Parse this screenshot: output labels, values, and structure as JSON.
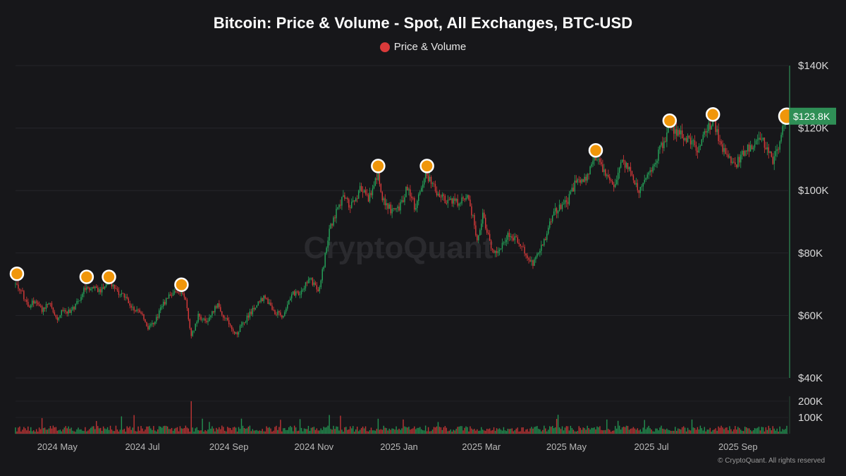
{
  "chart_data": {
    "type": "candlestick",
    "title": "Bitcoin: Price & Volume - Spot, All Exchanges, BTC-USD",
    "legend": [
      {
        "name": "Price & Volume",
        "color": "#d93a3a"
      }
    ],
    "watermark": "CryptoQuant",
    "copyright": "© CryptoQuant. All rights reserved",
    "current_price_label": "$123.8K",
    "current_price": 123800,
    "price_axis": {
      "ylim": [
        40000,
        140000
      ],
      "ticks": [
        {
          "value": 140000,
          "label": "$140K"
        },
        {
          "value": 120000,
          "label": "$120K"
        },
        {
          "value": 100000,
          "label": "$100K"
        },
        {
          "value": 80000,
          "label": "$80K"
        },
        {
          "value": 60000,
          "label": "$60K"
        },
        {
          "value": 40000,
          "label": "$40K"
        }
      ]
    },
    "volume_axis": {
      "ylim": [
        0,
        230000
      ],
      "ticks": [
        {
          "value": 200000,
          "label": "200K"
        },
        {
          "value": 100000,
          "label": "100K"
        }
      ]
    },
    "x_axis": {
      "range": [
        "2024-04-01",
        "2025-10-07"
      ],
      "ticks": [
        {
          "date": "2024-05-01",
          "label": "2024 May"
        },
        {
          "date": "2024-07-01",
          "label": "2024 Jul"
        },
        {
          "date": "2024-09-01",
          "label": "2024 Sep"
        },
        {
          "date": "2024-11-01",
          "label": "2024 Nov"
        },
        {
          "date": "2025-01-01",
          "label": "2025 Jan"
        },
        {
          "date": "2025-03-01",
          "label": "2025 Mar"
        },
        {
          "date": "2025-05-01",
          "label": "2025 May"
        },
        {
          "date": "2025-07-01",
          "label": "2025 Jul"
        },
        {
          "date": "2025-09-01",
          "label": "2025 Sep"
        }
      ]
    },
    "price_path": [
      [
        "2024-04-01",
        70000
      ],
      [
        "2024-04-05",
        68000
      ],
      [
        "2024-04-10",
        63000
      ],
      [
        "2024-04-15",
        65000
      ],
      [
        "2024-04-20",
        62000
      ],
      [
        "2024-04-25",
        64000
      ],
      [
        "2024-05-01",
        59000
      ],
      [
        "2024-05-05",
        62000
      ],
      [
        "2024-05-10",
        61000
      ],
      [
        "2024-05-15",
        64000
      ],
      [
        "2024-05-21",
        69000
      ],
      [
        "2024-05-26",
        68500
      ],
      [
        "2024-06-01",
        68000
      ],
      [
        "2024-06-06",
        71000
      ],
      [
        "2024-06-12",
        68000
      ],
      [
        "2024-06-18",
        66000
      ],
      [
        "2024-06-24",
        62000
      ],
      [
        "2024-06-30",
        61000
      ],
      [
        "2024-07-05",
        56000
      ],
      [
        "2024-07-10",
        58000
      ],
      [
        "2024-07-15",
        63000
      ],
      [
        "2024-07-22",
        67000
      ],
      [
        "2024-07-29",
        68000
      ],
      [
        "2024-08-01",
        65000
      ],
      [
        "2024-08-05",
        53000
      ],
      [
        "2024-08-10",
        60000
      ],
      [
        "2024-08-16",
        58000
      ],
      [
        "2024-08-24",
        64000
      ],
      [
        "2024-08-28",
        60000
      ],
      [
        "2024-09-06",
        54000
      ],
      [
        "2024-09-12",
        58000
      ],
      [
        "2024-09-20",
        63000
      ],
      [
        "2024-09-27",
        66000
      ],
      [
        "2024-10-03",
        61000
      ],
      [
        "2024-10-10",
        60000
      ],
      [
        "2024-10-16",
        67000
      ],
      [
        "2024-10-22",
        67500
      ],
      [
        "2024-10-29",
        72000
      ],
      [
        "2024-11-04",
        68000
      ],
      [
        "2024-11-08",
        76000
      ],
      [
        "2024-11-12",
        88000
      ],
      [
        "2024-11-22",
        98000
      ],
      [
        "2024-11-27",
        95000
      ],
      [
        "2024-12-05",
        101000
      ],
      [
        "2024-12-10",
        97000
      ],
      [
        "2024-12-17",
        106000
      ],
      [
        "2024-12-20",
        97000
      ],
      [
        "2024-12-26",
        94000
      ],
      [
        "2025-01-01",
        94000
      ],
      [
        "2025-01-07",
        101000
      ],
      [
        "2025-01-13",
        94000
      ],
      [
        "2025-01-20",
        106000
      ],
      [
        "2025-01-27",
        100000
      ],
      [
        "2025-02-03",
        97000
      ],
      [
        "2025-02-12",
        96000
      ],
      [
        "2025-02-20",
        98000
      ],
      [
        "2025-02-26",
        84000
      ],
      [
        "2025-03-02",
        92000
      ],
      [
        "2025-03-10",
        79000
      ],
      [
        "2025-03-20",
        86000
      ],
      [
        "2025-03-28",
        84000
      ],
      [
        "2025-04-07",
        76000
      ],
      [
        "2025-04-15",
        84000
      ],
      [
        "2025-04-22",
        93000
      ],
      [
        "2025-05-01",
        96000
      ],
      [
        "2025-05-08",
        103000
      ],
      [
        "2025-05-16",
        104000
      ],
      [
        "2025-05-22",
        111000
      ],
      [
        "2025-05-30",
        104000
      ],
      [
        "2025-06-05",
        101000
      ],
      [
        "2025-06-10",
        110000
      ],
      [
        "2025-06-17",
        105000
      ],
      [
        "2025-06-22",
        100000
      ],
      [
        "2025-07-01",
        107000
      ],
      [
        "2025-07-10",
        116000
      ],
      [
        "2025-07-14",
        121000
      ],
      [
        "2025-07-20",
        118000
      ],
      [
        "2025-07-30",
        116000
      ],
      [
        "2025-08-02",
        113000
      ],
      [
        "2025-08-10",
        119000
      ],
      [
        "2025-08-14",
        123000
      ],
      [
        "2025-08-20",
        114000
      ],
      [
        "2025-08-30",
        108000
      ],
      [
        "2025-09-05",
        112000
      ],
      [
        "2025-09-12",
        115000
      ],
      [
        "2025-09-18",
        117000
      ],
      [
        "2025-09-26",
        109000
      ],
      [
        "2025-10-01",
        116000
      ],
      [
        "2025-10-06",
        123800
      ]
    ],
    "highlighted_peaks": [
      {
        "date": "2024-04-02",
        "value": 72000
      },
      {
        "date": "2024-05-22",
        "value": 71000
      },
      {
        "date": "2024-06-07",
        "value": 71000
      },
      {
        "date": "2024-07-29",
        "value": 68500
      },
      {
        "date": "2024-12-17",
        "value": 106500
      },
      {
        "date": "2025-01-21",
        "value": 106500
      },
      {
        "date": "2025-05-22",
        "value": 111500
      },
      {
        "date": "2025-07-14",
        "value": 121000
      },
      {
        "date": "2025-08-14",
        "value": 123000
      },
      {
        "date": "2025-10-06",
        "value": 123800,
        "current": true
      }
    ],
    "colors": {
      "up": "#26a65b",
      "down": "#d93a3a",
      "peak_fill": "#f0960a",
      "peak_ring": "#ffffff",
      "price_tag": "#2f8f56"
    }
  }
}
